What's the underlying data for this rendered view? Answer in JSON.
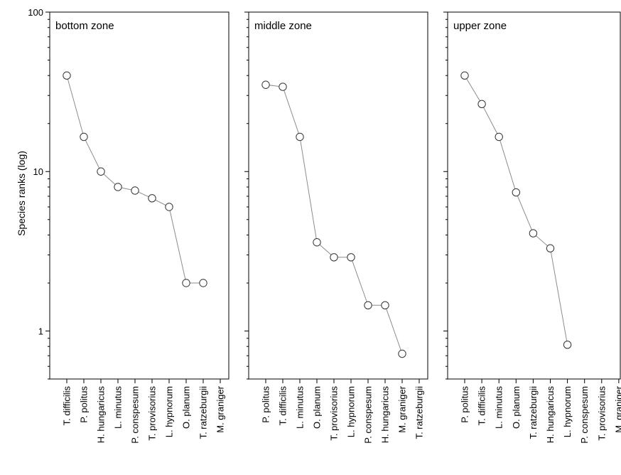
{
  "chart_data": {
    "type": "line",
    "ylabel": "Species ranks (log)",
    "yscale": "log",
    "ylim": [
      0.5,
      100
    ],
    "y_ticks": [
      {
        "value": 1,
        "label": "1"
      },
      {
        "value": 10,
        "label": "10"
      },
      {
        "value": 100,
        "label": "100"
      }
    ],
    "grid": false,
    "marker": "circle",
    "colors": {
      "line": "#8c8c8c",
      "marker_edge": "#333333",
      "marker_fill": "#ffffff",
      "frame": "#000000"
    },
    "panels": [
      {
        "title": "bottom zone",
        "categories": [
          "T. difficilis",
          "P. politus",
          "H. hungaricus",
          "L. minutus",
          "P. conspesum",
          "T. provisorius",
          "L. hypnorum",
          "O. planum",
          "T. ratzeburgii",
          "M. graniger"
        ],
        "values": [
          40,
          16.5,
          10,
          8,
          7.6,
          6.8,
          6,
          2,
          2,
          null
        ]
      },
      {
        "title": "middle zone",
        "categories": [
          "P. politus",
          "T. difficilis",
          "L. minutus",
          "O. planum",
          "T. provisorius",
          "L. hypnorum",
          "P. conspesum",
          "H. hungaricus",
          "M. graniger",
          "T. ratzeburgii"
        ],
        "values": [
          35,
          34,
          16.5,
          3.6,
          2.9,
          2.9,
          1.45,
          1.45,
          0.72,
          null
        ]
      },
      {
        "title": "upper zone",
        "categories": [
          "P. politus",
          "T. difficilis",
          "L. minutus",
          "O. planum",
          "T. ratzeburgii",
          "H. hungaricus",
          "L. hypnorum",
          "P. conspesum",
          "T. provisorius",
          "M. graniger"
        ],
        "values": [
          40,
          26.5,
          16.5,
          7.4,
          4.1,
          3.3,
          0.82,
          null,
          null,
          null
        ]
      }
    ]
  }
}
